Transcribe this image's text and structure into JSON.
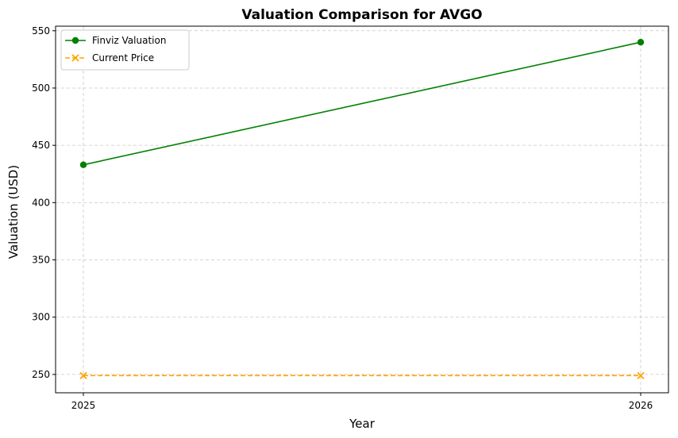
{
  "chart_data": {
    "type": "line",
    "title": "Valuation Comparison for AVGO",
    "xlabel": "Year",
    "ylabel": "Valuation (USD)",
    "x": [
      "2025",
      "2026"
    ],
    "ylim": [
      234,
      554
    ],
    "yticks": [
      "250",
      "300",
      "350",
      "400",
      "450",
      "500",
      "550"
    ],
    "grid": true,
    "legend_position": "top-left",
    "series": [
      {
        "name": "Finviz Valuation",
        "values": [
          433,
          540
        ],
        "color": "#008000",
        "line_style": "solid",
        "marker": "circle"
      },
      {
        "name": "Current Price",
        "values": [
          249,
          249
        ],
        "color": "#ffa500",
        "line_style": "dashed",
        "marker": "x"
      }
    ]
  }
}
